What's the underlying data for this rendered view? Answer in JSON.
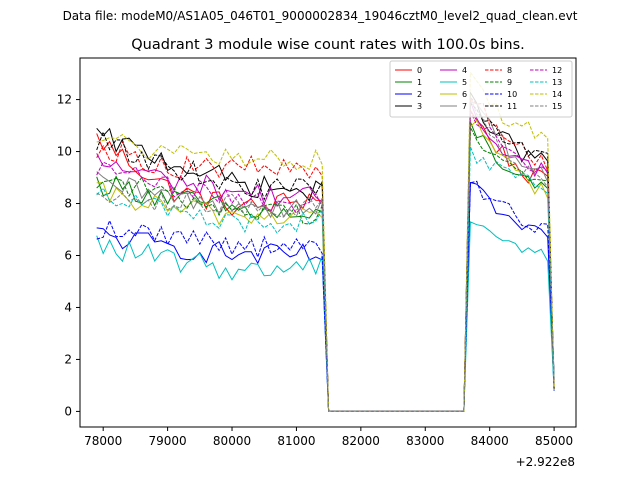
{
  "header": {
    "data_file": "Data file: modeM0/AS1A05_046T01_9000002834_19046cztM0_level2_quad_clean.evt"
  },
  "chart_data": {
    "type": "line",
    "title": "Quadrant 3 module wise count rates with 100.0s bins.",
    "xlabel": "",
    "ylabel": "",
    "x_offset_label": "+2.922e8",
    "xlim": [
      77640,
      85340
    ],
    "ylim": [
      -0.6,
      13.6
    ],
    "x_ticks": [
      78000,
      79000,
      80000,
      81000,
      82000,
      83000,
      84000,
      85000
    ],
    "x_tick_labels": [
      "78000",
      "79000",
      "80000",
      "81000",
      "82000",
      "83000",
      "84000",
      "85000"
    ],
    "y_ticks": [
      0,
      2,
      4,
      6,
      8,
      10,
      12
    ],
    "y_tick_labels": [
      "0",
      "2",
      "4",
      "6",
      "8",
      "10",
      "12"
    ],
    "grid": false,
    "legend_position": "top-right",
    "legend_columns": 4,
    "segments": [
      {
        "x_start": 77900,
        "x_end": 81400,
        "n": 36
      },
      {
        "x_start": 83700,
        "x_end": 84900,
        "n": 13
      }
    ],
    "series": [
      {
        "name": "0",
        "color": "#ff0000",
        "dash": "solid",
        "seg1": [
          10.5,
          8.5,
          7.8,
          8.3
        ],
        "seg2": [
          11.5,
          10.2,
          9.2,
          8.8
        ]
      },
      {
        "name": "1",
        "color": "#008000",
        "dash": "solid",
        "seg1": [
          8.8,
          8.2,
          7.7,
          7.4
        ],
        "seg2": [
          11.0,
          9.8,
          8.8,
          8.4
        ]
      },
      {
        "name": "2",
        "color": "#0000ff",
        "dash": "solid",
        "seg1": [
          6.8,
          6.3,
          6.0,
          6.0
        ],
        "seg2": [
          8.6,
          7.8,
          7.0,
          6.6
        ]
      },
      {
        "name": "3",
        "color": "#000000",
        "dash": "solid",
        "seg1": [
          10.6,
          9.6,
          8.7,
          8.4
        ],
        "seg2": [
          12.0,
          10.8,
          9.9,
          9.6
        ]
      },
      {
        "name": "4",
        "color": "#bf00bf",
        "dash": "solid",
        "seg1": [
          9.6,
          8.9,
          8.4,
          8.2
        ],
        "seg2": [
          11.6,
          10.4,
          9.6,
          9.2
        ]
      },
      {
        "name": "5",
        "color": "#00bfbf",
        "dash": "solid",
        "seg1": [
          6.4,
          5.8,
          5.4,
          5.7
        ],
        "seg2": [
          7.6,
          6.8,
          6.3,
          5.9
        ]
      },
      {
        "name": "6",
        "color": "#bfbf00",
        "dash": "solid",
        "seg1": [
          8.4,
          7.8,
          7.5,
          7.6
        ],
        "seg2": [
          11.2,
          10.0,
          9.0,
          8.4
        ]
      },
      {
        "name": "7",
        "color": "#808080",
        "dash": "solid",
        "seg1": [
          8.8,
          8.2,
          7.9,
          7.9
        ],
        "seg2": [
          12.1,
          10.6,
          9.5,
          9.1
        ]
      },
      {
        "name": "8",
        "color": "#ff0000",
        "dash": "dashed",
        "seg1": [
          10.2,
          9.4,
          9.4,
          9.2
        ],
        "seg2": [
          12.2,
          11.0,
          10.0,
          9.6
        ]
      },
      {
        "name": "9",
        "color": "#008000",
        "dash": "dashed",
        "seg1": [
          9.0,
          8.3,
          7.7,
          7.6
        ],
        "seg2": [
          11.0,
          9.8,
          9.2,
          8.6
        ]
      },
      {
        "name": "10",
        "color": "#0000ff",
        "dash": "dashed",
        "seg1": [
          7.0,
          6.8,
          6.4,
          6.2
        ],
        "seg2": [
          8.8,
          8.0,
          7.4,
          7.0
        ]
      },
      {
        "name": "11",
        "color": "#000000",
        "dash": "dashed",
        "seg1": [
          10.4,
          9.4,
          8.6,
          8.5
        ],
        "seg2": [
          11.8,
          10.8,
          10.2,
          9.8
        ]
      },
      {
        "name": "12",
        "color": "#bf00bf",
        "dash": "dashed",
        "seg1": [
          9.4,
          8.6,
          8.2,
          8.0
        ],
        "seg2": [
          11.4,
          10.4,
          9.8,
          9.2
        ]
      },
      {
        "name": "13",
        "color": "#00bfbf",
        "dash": "dashed",
        "seg1": [
          8.6,
          7.6,
          7.2,
          7.4
        ],
        "seg2": [
          10.0,
          9.4,
          8.9,
          8.4
        ]
      },
      {
        "name": "14",
        "color": "#bfbf00",
        "dash": "dashed",
        "seg1": [
          10.6,
          9.8,
          9.8,
          9.6
        ],
        "seg2": [
          12.8,
          11.6,
          11.0,
          10.6
        ]
      },
      {
        "name": "15",
        "color": "#808080",
        "dash": "dashed",
        "seg1": [
          8.6,
          8.0,
          7.9,
          7.8
        ],
        "seg2": [
          11.8,
          10.2,
          9.4,
          8.8
        ]
      }
    ],
    "gap_value": 0.0,
    "final_drop_value": 1.0
  }
}
